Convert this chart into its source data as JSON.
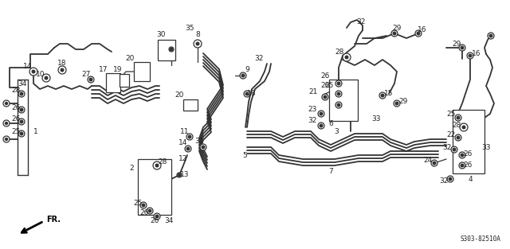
{
  "bg_color": "#ffffff",
  "line_color": "#333333",
  "label_color": "#222222",
  "diagram_code": "S303-82510A",
  "fr_label": "FR.",
  "fig_width": 6.4,
  "fig_height": 3.13,
  "dpi": 100
}
